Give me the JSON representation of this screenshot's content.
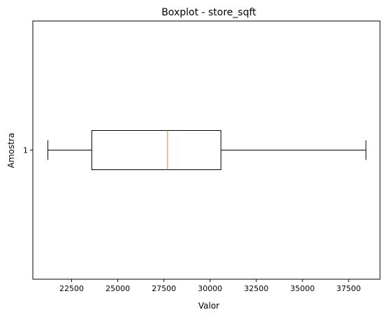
{
  "chart_data": {
    "type": "boxplot",
    "orientation": "horizontal",
    "title": "Boxplot - store_sqft",
    "xlabel": "Valor",
    "ylabel": "Amostra",
    "xlim": [
      20400,
      39200
    ],
    "x_ticks": [
      22500,
      25000,
      27500,
      30000,
      32500,
      35000,
      37500
    ],
    "x_tick_labels": [
      "22500",
      "25000",
      "27500",
      "30000",
      "32500",
      "35000",
      "37500"
    ],
    "y_ticks": [
      "1"
    ],
    "grid": false,
    "legend": "none",
    "boxes": [
      {
        "label": "1",
        "whisker_low": 21215,
        "q1": 23593,
        "median": 27694,
        "q3": 30584,
        "whisker_high": 38440
      }
    ],
    "colors": {
      "box": "#000000",
      "median": "#ff7f0e",
      "whisker": "#000000"
    }
  }
}
